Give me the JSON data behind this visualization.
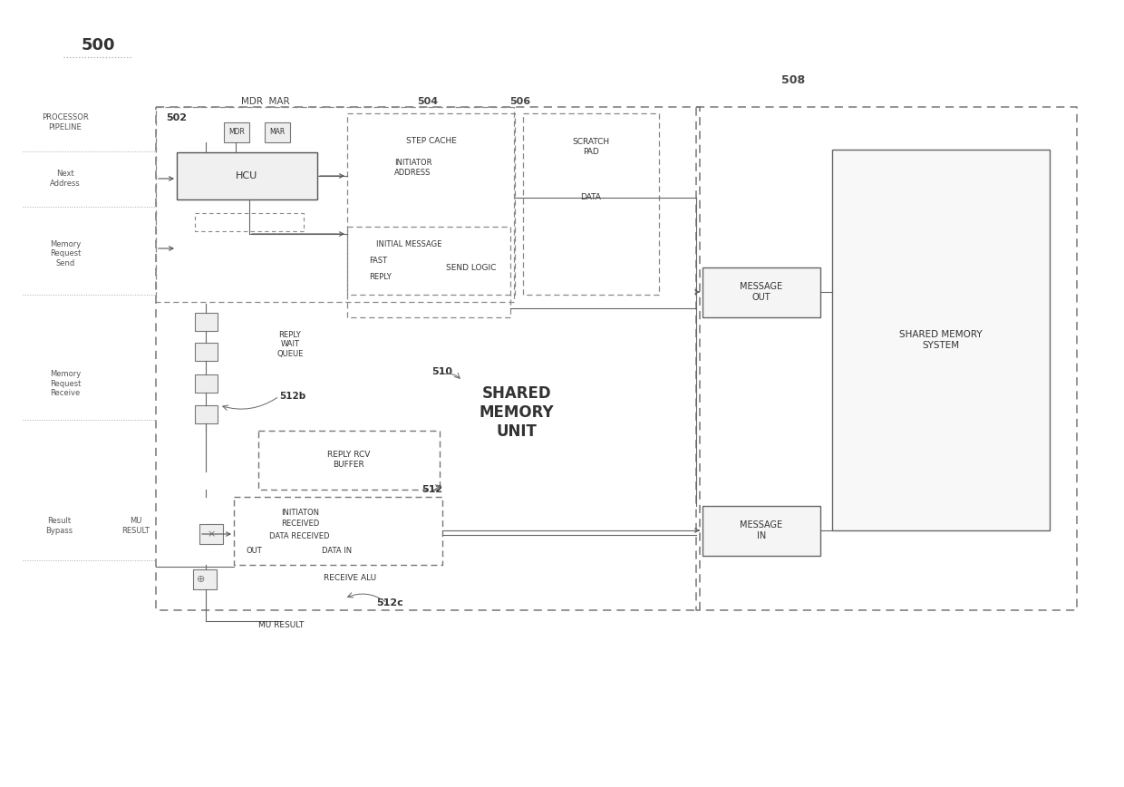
{
  "bg_color": "#ffffff",
  "diagram_label": "500",
  "ref_502": "502",
  "ref_504": "504",
  "ref_506": "506",
  "ref_508": "508",
  "ref_510": "510",
  "ref_512": "512",
  "ref_512b": "512b",
  "ref_512c": "512c",
  "mdr_mar_label": "MDR  MAR",
  "processor_pipeline_label": "PROCESSOR\nPIPELINE",
  "hcu_label": "HCU",
  "initiator_address_label": "INITIATOR\nADDRESS",
  "step_cache_label": "STEP CACHE",
  "scratch_pad_label": "SCRATCH\nPAD\n\nDATA",
  "send_logic_label": "SEND LOGIC",
  "reply_wait_queue_label": "REPLY\nWAIT\nQUEUE",
  "reply_rcv_buffer_label": "REPLY RCV\nBUFFER",
  "receive_alu_label": "RECEIVE ALU",
  "message_out_label": "MESSAGE\nOUT",
  "message_in_label": "MESSAGE\nIN",
  "shared_memory_unit_label": "SHARED\nMEMORY\nUNIT",
  "shared_memory_system_label": "SHARED MEMORY\nSYSTEM",
  "line_color": "#666666",
  "text_color": "#333333"
}
